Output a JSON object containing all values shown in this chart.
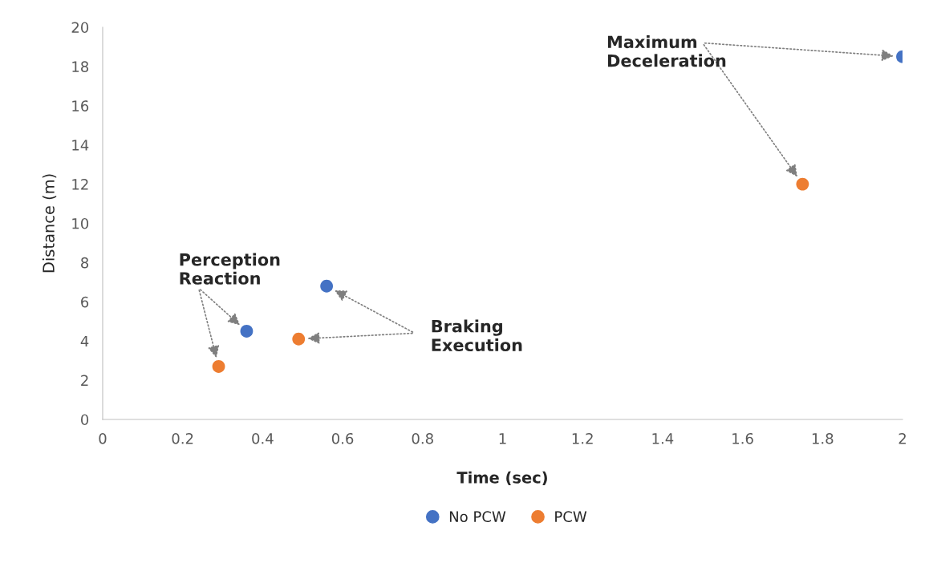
{
  "chart_data": {
    "type": "scatter",
    "xlabel": "Time (sec)",
    "ylabel": "Distance (m)",
    "series": [
      {
        "name": "No PCW",
        "color": "#4472c4",
        "x": [
          0.36,
          0.56,
          2.0
        ],
        "values": [
          4.5,
          6.8,
          18.5
        ]
      },
      {
        "name": "PCW",
        "color": "#ed7d31",
        "x": [
          0.29,
          0.49,
          1.75
        ],
        "values": [
          2.7,
          4.1,
          12.0
        ]
      }
    ],
    "annotations": [
      "Perception\nReaction",
      "Braking\nExecution",
      "Maximum\nDeceleration"
    ],
    "xlim": [
      0,
      2
    ],
    "xticks": [
      0,
      0.2,
      0.4,
      0.6,
      0.8,
      1,
      1.2,
      1.4,
      1.6,
      1.8,
      2
    ],
    "ylim": [
      0,
      20
    ],
    "yticks": [
      0,
      2,
      4,
      6,
      8,
      10,
      12,
      14,
      16,
      18,
      20
    ],
    "grid": false,
    "legend": "bottom",
    "marker": "circle"
  }
}
